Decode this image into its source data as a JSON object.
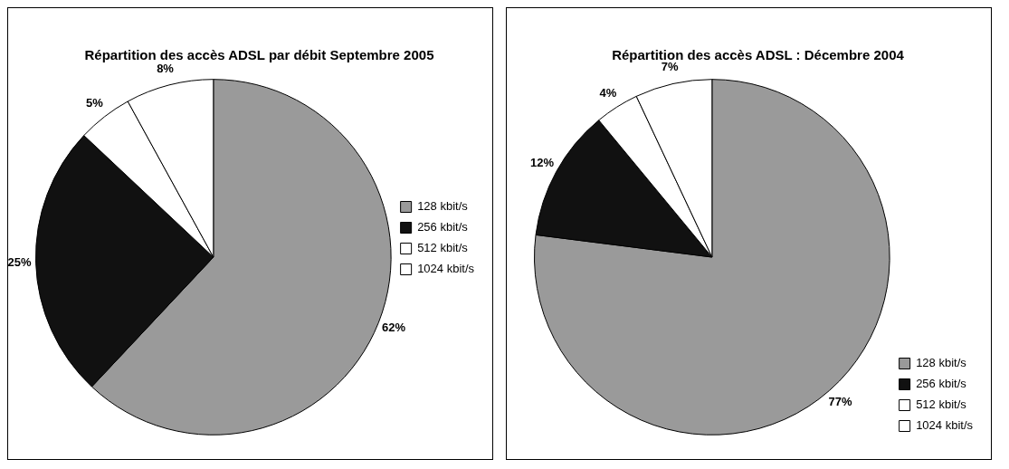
{
  "chart_data": [
    {
      "type": "pie",
      "title": "Répartition des accès ADSL par débit Septembre 2005",
      "categories": [
        "128 kbit/s",
        "256 kbit/s",
        "512 kbit/s",
        "1024 kbit/s"
      ],
      "values": [
        62,
        25,
        5,
        8
      ],
      "value_labels": [
        "62%",
        "25%",
        "5%",
        "8%"
      ],
      "colors": [
        "#9a9a9a",
        "#111111",
        "#ffffff",
        "#ffffff"
      ],
      "legend": "right"
    },
    {
      "type": "pie",
      "title": "Répartition des accès ADSL : Décembre 2004",
      "categories": [
        "128 kbit/s",
        "256 kbit/s",
        "512 kbit/s",
        "1024 kbit/s"
      ],
      "values": [
        77,
        12,
        4,
        7
      ],
      "value_labels": [
        "77%",
        "12%",
        "4%",
        "7%"
      ],
      "colors": [
        "#9a9a9a",
        "#111111",
        "#ffffff",
        "#ffffff"
      ],
      "legend": "bottom right"
    }
  ]
}
